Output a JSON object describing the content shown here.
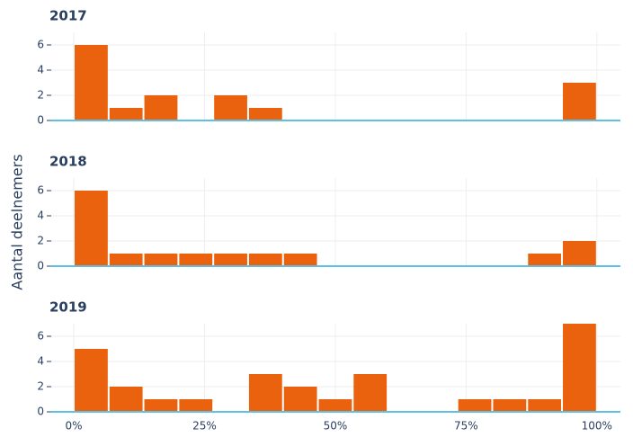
{
  "chart_data": [
    {
      "type": "histogram",
      "title": "2017",
      "color": "#ea620d",
      "bins": [
        0,
        6.67,
        13.33,
        20,
        26.67,
        33.33,
        40,
        46.67,
        53.33,
        60,
        66.67,
        73.33,
        80,
        86.67,
        93.33,
        100
      ],
      "values": [
        6,
        1,
        2,
        0,
        2,
        1,
        0,
        0,
        0,
        0,
        0,
        0,
        0,
        0,
        3
      ],
      "xlim": [
        -4.3,
        104.5
      ],
      "ylim": [
        0,
        7
      ],
      "yticks": [
        0,
        2,
        4,
        6
      ],
      "grid": true
    },
    {
      "type": "histogram",
      "title": "2018",
      "color": "#ea620d",
      "ylabel": "Aantal deelnemers",
      "bins": [
        0,
        6.67,
        13.33,
        20,
        26.67,
        33.33,
        40,
        46.67,
        53.33,
        60,
        66.67,
        73.33,
        80,
        86.67,
        93.33,
        100
      ],
      "values": [
        6,
        1,
        1,
        1,
        1,
        1,
        1,
        0,
        0,
        0,
        0,
        0,
        0,
        1,
        2
      ],
      "xlim": [
        -4.3,
        104.5
      ],
      "ylim": [
        0,
        7
      ],
      "yticks": [
        0,
        2,
        4,
        6
      ],
      "grid": true
    },
    {
      "type": "histogram",
      "title": "2019",
      "color": "#ea620d",
      "bins": [
        0,
        6.67,
        13.33,
        20,
        26.67,
        33.33,
        40,
        46.67,
        53.33,
        60,
        66.67,
        73.33,
        80,
        86.67,
        93.33,
        100
      ],
      "values": [
        5,
        2,
        1,
        1,
        0,
        3,
        2,
        1,
        3,
        0,
        0,
        1,
        1,
        1,
        7
      ],
      "xlim": [
        -4.3,
        104.5
      ],
      "ylim": [
        0,
        7
      ],
      "yticks": [
        0,
        2,
        4,
        6
      ],
      "grid": true,
      "xticks": [
        {
          "value": 0,
          "label": "0%"
        },
        {
          "value": 25,
          "label": "25%"
        },
        {
          "value": 50,
          "label": "50%"
        },
        {
          "value": 75,
          "label": "75%"
        },
        {
          "value": 100,
          "label": "100%"
        }
      ]
    }
  ]
}
